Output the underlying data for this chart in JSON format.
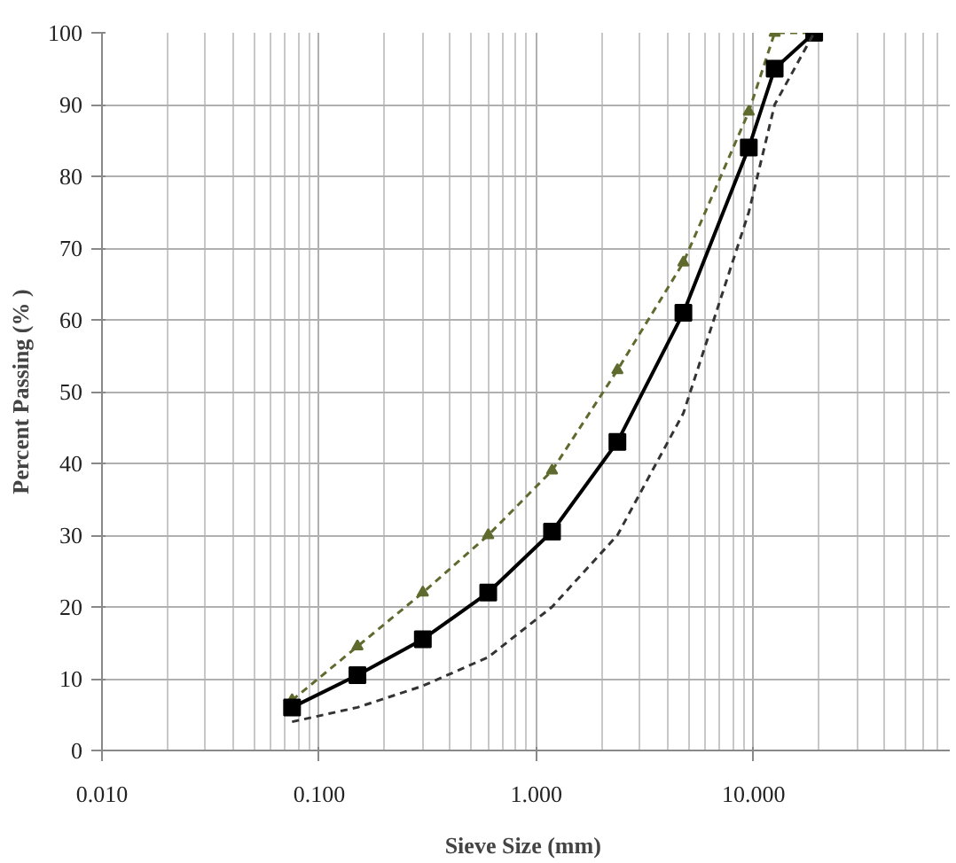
{
  "chart_data": {
    "type": "line",
    "xlabel": "Sieve Size  (mm)",
    "ylabel": "Percent Passing (% )",
    "log": "x",
    "xlim": [
      0.01,
      80
    ],
    "xticks": [
      {
        "value": 0.01,
        "label": "0.010"
      },
      {
        "value": 0.1,
        "label": "0.100"
      },
      {
        "value": 1,
        "label": "1.000"
      },
      {
        "value": 10,
        "label": "10.000"
      }
    ],
    "ylim": [
      0,
      100
    ],
    "yticks": [
      0,
      10,
      20,
      30,
      40,
      50,
      60,
      70,
      80,
      90,
      100
    ],
    "grid": true,
    "series": [
      {
        "color": "#5f6a2e",
        "x": [
          0.075,
          0.15,
          0.3,
          0.6,
          1.18,
          2.36,
          4.75,
          9.5,
          12.5,
          19
        ],
        "values": [
          7,
          14.5,
          22,
          30,
          39,
          53,
          68,
          89,
          100,
          100
        ],
        "line_style": "dashed",
        "marker": "triangle"
      },
      {
        "color": "#000000",
        "x": [
          0.075,
          0.15,
          0.3,
          0.6,
          1.18,
          2.36,
          4.75,
          9.5,
          12.5,
          19
        ],
        "values": [
          6,
          10.5,
          15.5,
          22,
          30.5,
          43,
          61,
          84,
          95,
          100
        ],
        "line_style": "solid",
        "marker": "square"
      },
      {
        "color": "#333333",
        "x": [
          0.075,
          0.15,
          0.3,
          0.6,
          1.18,
          2.36,
          4.75,
          9.5,
          12.5,
          19
        ],
        "values": [
          4,
          6,
          9,
          13,
          20,
          30,
          47,
          75,
          90,
          100
        ],
        "line_style": "dashed",
        "marker": "none"
      }
    ]
  }
}
